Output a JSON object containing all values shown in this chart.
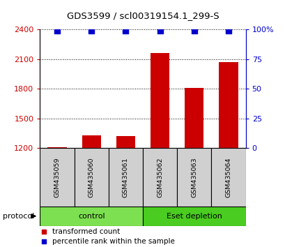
{
  "title": "GDS3599 / scl00319154.1_299-S",
  "samples": [
    "GSM435059",
    "GSM435060",
    "GSM435061",
    "GSM435062",
    "GSM435063",
    "GSM435064"
  ],
  "transformed_counts": [
    1210,
    1330,
    1320,
    2160,
    1810,
    2070
  ],
  "percentile_ranks": [
    99,
    99,
    99,
    99,
    99,
    99
  ],
  "ylim_left": [
    1200,
    2400
  ],
  "ylim_right": [
    0,
    100
  ],
  "yticks_left": [
    1200,
    1500,
    1800,
    2100,
    2400
  ],
  "yticks_right": [
    0,
    25,
    50,
    75,
    100
  ],
  "ytick_labels_right": [
    "0",
    "25",
    "50",
    "75",
    "100%"
  ],
  "groups": [
    {
      "name": "control",
      "indices": [
        0,
        1,
        2
      ],
      "color_light": "#c8f5a0",
      "color_dark": "#7de050"
    },
    {
      "name": "Eset depletion",
      "indices": [
        3,
        4,
        5
      ],
      "color_light": "#7de050",
      "color_dark": "#4acc20"
    }
  ],
  "bar_color": "#cc0000",
  "dot_color": "#0000cc",
  "dot_size": 35,
  "bar_width": 0.55,
  "grid_color": "#000000",
  "left_tick_color": "#cc0000",
  "right_tick_color": "#0000cc",
  "sample_box_color": "#d0d0d0",
  "legend_items": [
    {
      "label": "transformed count",
      "color": "#cc0000"
    },
    {
      "label": "percentile rank within the sample",
      "color": "#0000cc"
    }
  ],
  "protocol_label": "protocol",
  "baseline": 1200,
  "fig_width": 4.1,
  "fig_height": 3.54,
  "dpi": 100
}
